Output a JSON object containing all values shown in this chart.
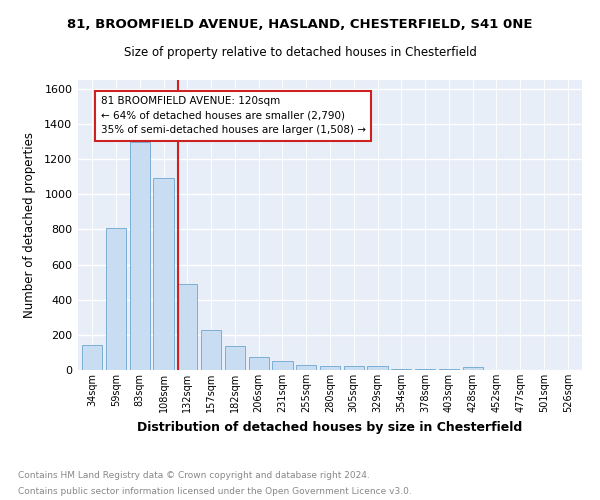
{
  "title1": "81, BROOMFIELD AVENUE, HASLAND, CHESTERFIELD, S41 0NE",
  "title2": "Size of property relative to detached houses in Chesterfield",
  "xlabel": "Distribution of detached houses by size in Chesterfield",
  "ylabel": "Number of detached properties",
  "bin_labels": [
    "34sqm",
    "59sqm",
    "83sqm",
    "108sqm",
    "132sqm",
    "157sqm",
    "182sqm",
    "206sqm",
    "231sqm",
    "255sqm",
    "280sqm",
    "305sqm",
    "329sqm",
    "354sqm",
    "378sqm",
    "403sqm",
    "428sqm",
    "452sqm",
    "477sqm",
    "501sqm",
    "526sqm"
  ],
  "bar_values": [
    140,
    810,
    1295,
    1095,
    490,
    230,
    135,
    75,
    50,
    30,
    20,
    20,
    20,
    5,
    5,
    5,
    15,
    2,
    2,
    2,
    2
  ],
  "bar_color": "#c9ddf2",
  "bar_edge_color": "#7bafd4",
  "ylim": [
    0,
    1650
  ],
  "yticks": [
    0,
    200,
    400,
    600,
    800,
    1000,
    1200,
    1400,
    1600
  ],
  "property_line_x": 3.6,
  "annotation_line1": "81 BROOMFIELD AVENUE: 120sqm",
  "annotation_line2": "← 64% of detached houses are smaller (2,790)",
  "annotation_line3": "35% of semi-detached houses are larger (1,508) →",
  "annotation_box_color": "#ffffff",
  "annotation_box_edge": "#cc2222",
  "red_line_color": "#cc2222",
  "footer_line1": "Contains HM Land Registry data © Crown copyright and database right 2024.",
  "footer_line2": "Contains public sector information licensed under the Open Government Licence v3.0.",
  "background_color": "#e8eef8",
  "grid_color": "#ffffff",
  "fig_bg": "#ffffff"
}
